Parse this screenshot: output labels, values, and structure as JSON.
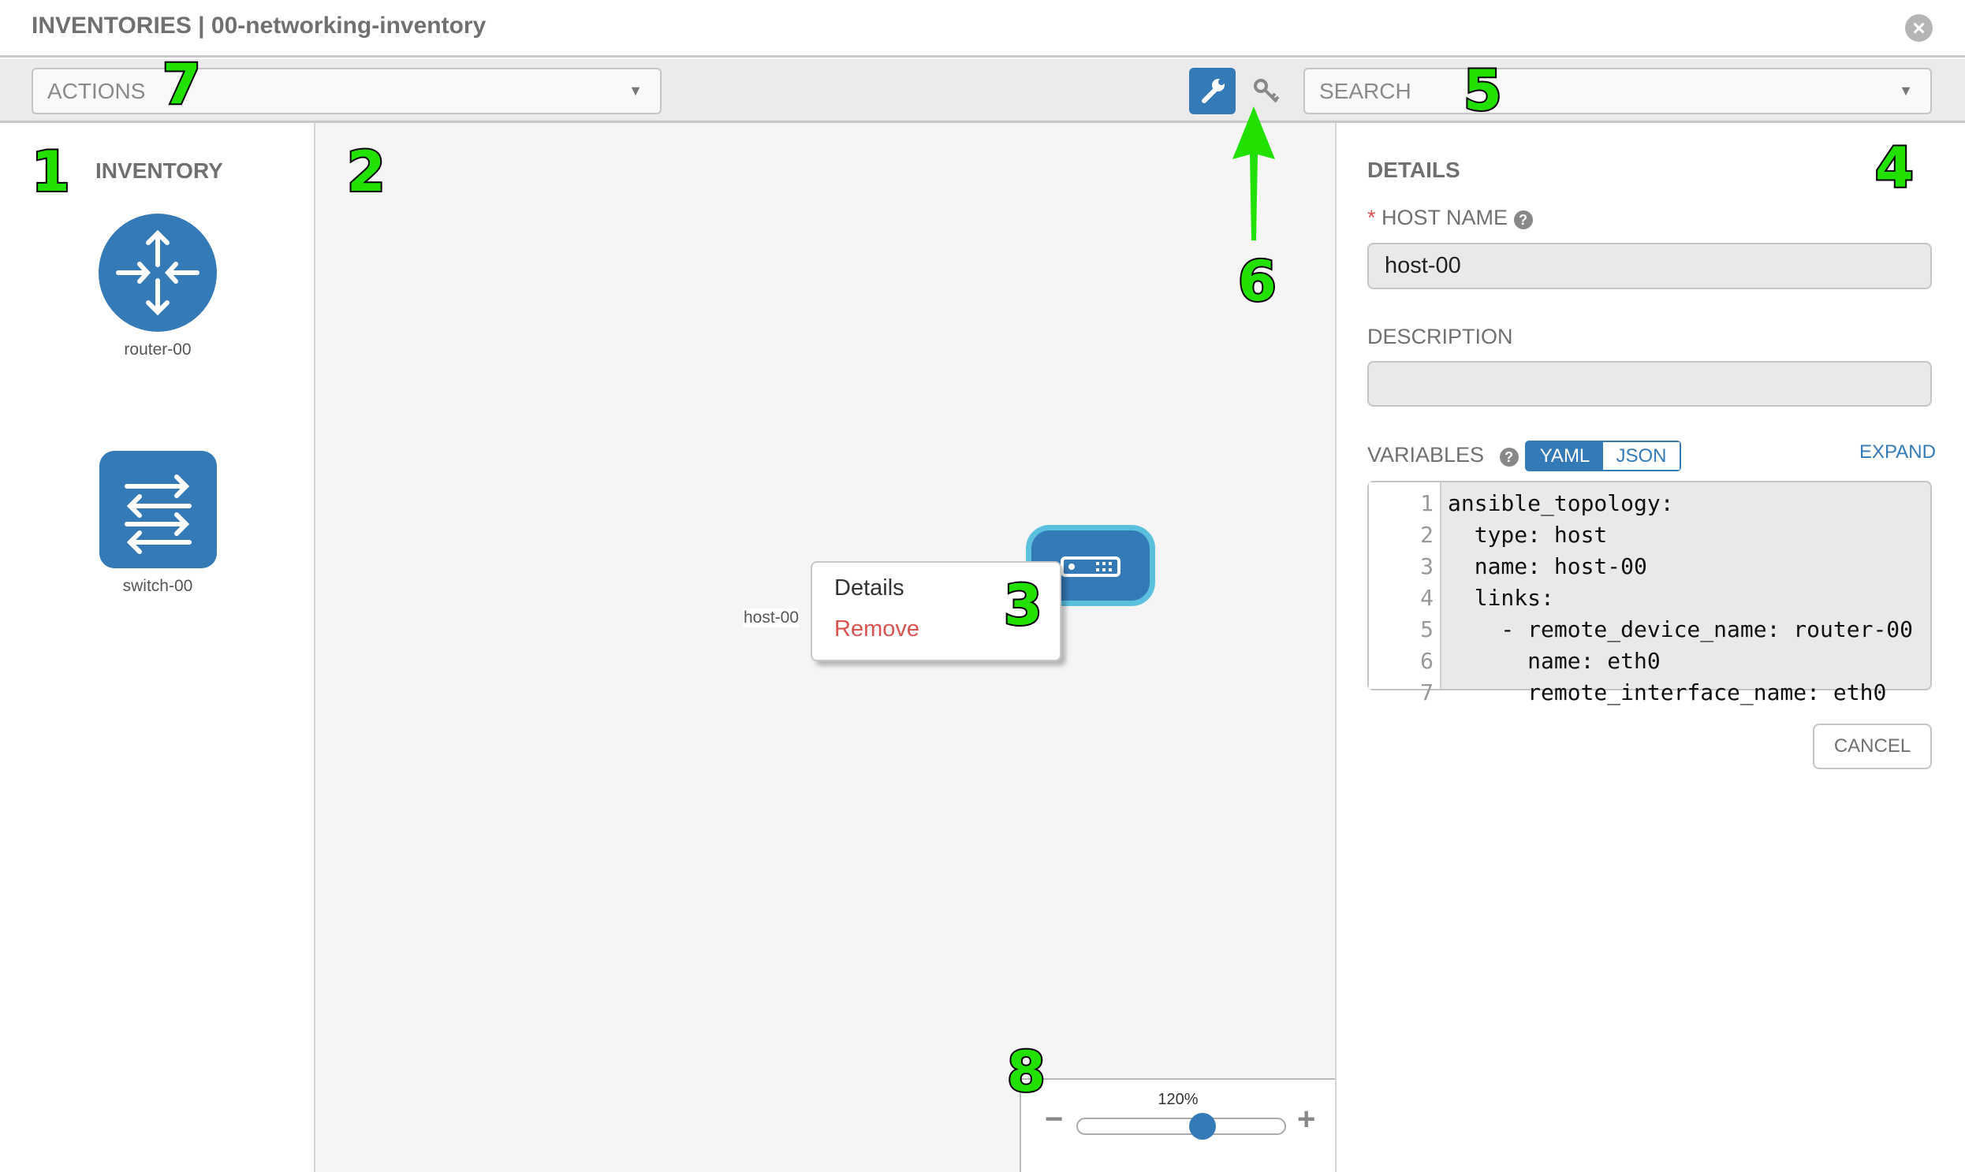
{
  "header": {
    "title": "INVENTORIES | 00-networking-inventory",
    "close_icon": "close-circle-icon"
  },
  "toolbar": {
    "actions_placeholder": "ACTIONS",
    "search_placeholder": "SEARCH",
    "mode_buttons": [
      {
        "icon": "wrench-icon",
        "active": true
      },
      {
        "icon": "key-icon",
        "active": false
      }
    ]
  },
  "inventory": {
    "heading": "INVENTORY",
    "items": [
      {
        "label": "router-00",
        "icon": "router-icon"
      },
      {
        "label": "switch-00",
        "icon": "switch-icon"
      }
    ]
  },
  "canvas": {
    "host": {
      "label": "host-00",
      "icon": "host-server-icon"
    },
    "context_menu": {
      "details": "Details",
      "remove": "Remove"
    },
    "zoom": {
      "level": "120%",
      "slider_fraction": 0.6,
      "minus": "−",
      "plus": "+"
    }
  },
  "details": {
    "heading": "DETAILS",
    "required_mark": "*",
    "host_name_label": "HOST NAME",
    "host_name_value": "host-00",
    "description_label": "DESCRIPTION",
    "description_value": "",
    "variables_label": "VARIABLES",
    "yaml": "YAML",
    "json": "JSON",
    "expand": "EXPAND",
    "code_lines": [
      {
        "n": "1",
        "text": "ansible_topology:"
      },
      {
        "n": "2",
        "text": "  type: host"
      },
      {
        "n": "3",
        "text": "  name: host-00"
      },
      {
        "n": "4",
        "text": "  links:"
      },
      {
        "n": "5",
        "text": "    - remote_device_name: router-00"
      },
      {
        "n": "6",
        "text": "      name: eth0"
      },
      {
        "n": "7",
        "text": "      remote_interface_name: eth0"
      }
    ],
    "cancel": "CANCEL"
  },
  "annotations": [
    "1",
    "2",
    "3",
    "4",
    "5",
    "6",
    "7",
    "8"
  ],
  "colors": {
    "primary": "#337ab7",
    "host_border": "#5bc0de",
    "danger": "#d9534f",
    "annotation": "#22e000"
  }
}
